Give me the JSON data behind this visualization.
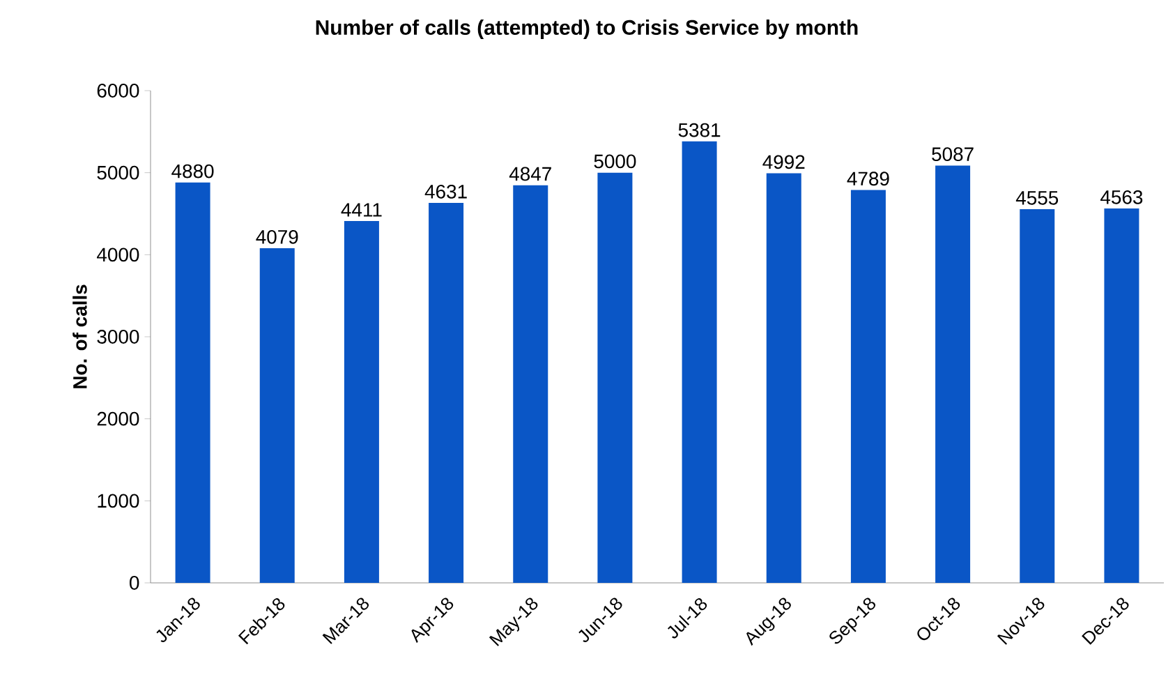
{
  "chart_data": {
    "type": "bar",
    "title": "Number of calls (attempted) to Crisis Service by month",
    "ylabel": "No. of calls",
    "categories": [
      "Jan-18",
      "Feb-18",
      "Mar-18",
      "Apr-18",
      "May-18",
      "Jun-18",
      "Jul-18",
      "Aug-18",
      "Sep-18",
      "Oct-18",
      "Nov-18",
      "Dec-18"
    ],
    "values": [
      4880,
      4079,
      4411,
      4631,
      4847,
      5000,
      5381,
      4992,
      4789,
      5087,
      4555,
      4563
    ],
    "color": "#0a56c6",
    "ylim": [
      0,
      6000
    ],
    "yticks": [
      0,
      1000,
      2000,
      3000,
      4000,
      5000,
      6000
    ],
    "data_labels": true
  }
}
